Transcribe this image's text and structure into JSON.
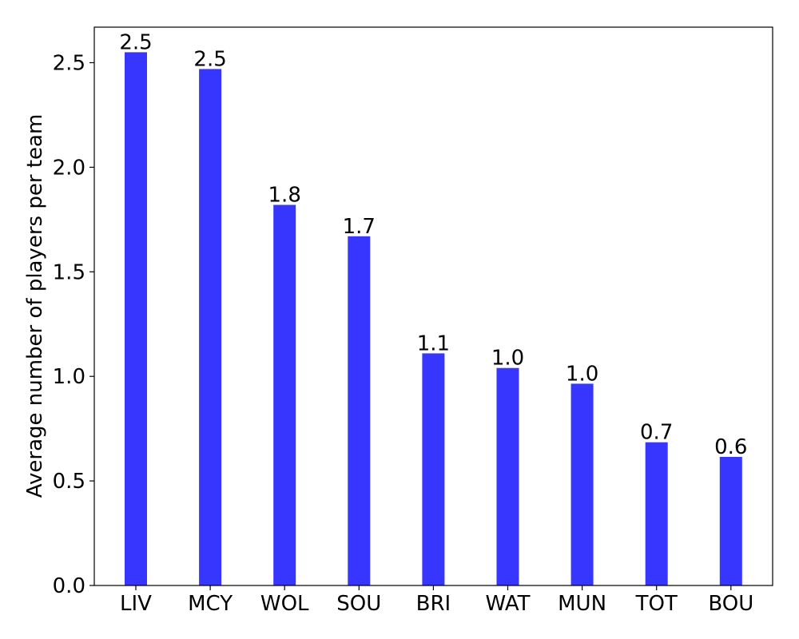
{
  "chart_data": {
    "type": "bar",
    "categories": [
      "LIV",
      "MCY",
      "WOL",
      "SOU",
      "BRI",
      "WAT",
      "MUN",
      "TOT",
      "BOU"
    ],
    "values": [
      2.55,
      2.47,
      1.82,
      1.67,
      1.11,
      1.04,
      0.965,
      0.685,
      0.615
    ],
    "data_labels": [
      "2.5",
      "2.5",
      "1.8",
      "1.7",
      "1.1",
      "1.0",
      "1.0",
      "0.7",
      "0.6"
    ],
    "title": "",
    "xlabel": "",
    "ylabel": "Average number of players per team",
    "ylim": [
      0,
      2.67
    ],
    "yticks": [
      0.0,
      0.5,
      1.0,
      1.5,
      2.0,
      2.5
    ],
    "ytick_labels": [
      "0.0",
      "0.5",
      "1.0",
      "1.5",
      "2.0",
      "2.5"
    ],
    "grid": false,
    "bar_color": "#3636ff"
  }
}
